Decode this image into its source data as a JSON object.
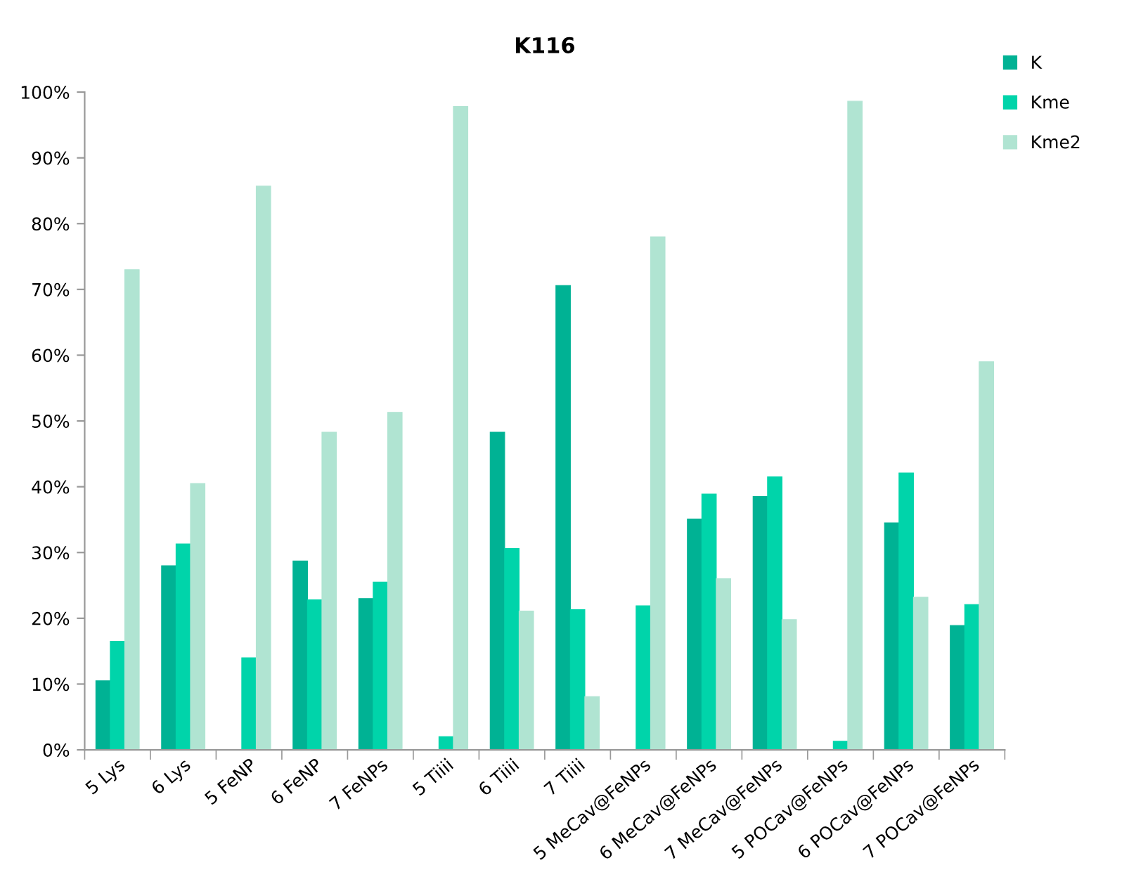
{
  "chart_data": {
    "type": "bar",
    "title": "K116",
    "categories": [
      "5 Lys",
      "6 Lys",
      "5 FeNP",
      "6 FeNP",
      "7 FeNPs",
      "5 Tiiii",
      "6 Tiiii",
      "7 Tiiii",
      "5 MeCav@FeNPs",
      "6 MeCav@FeNPs",
      "7 MeCav@FeNPs",
      "5 POCav@FeNPs",
      "6 POCav@FeNPs",
      "7 POCav@FeNPs"
    ],
    "series": [
      {
        "name": "K",
        "color": "#00b294",
        "values": [
          10.5,
          28,
          null,
          28.7,
          23,
          0,
          48.3,
          70.6,
          0,
          35.1,
          38.5,
          null,
          34.5,
          18.9
        ]
      },
      {
        "name": "Kme",
        "color": "#00d4aa",
        "values": [
          16.5,
          31.3,
          14,
          22.8,
          25.5,
          2,
          30.6,
          21.3,
          21.9,
          38.9,
          41.5,
          1.3,
          42.1,
          22.1
        ]
      },
      {
        "name": "Kme2",
        "color": "#b0e4d2",
        "values": [
          73,
          40.5,
          85.7,
          48.3,
          51.3,
          97.8,
          21.1,
          8.1,
          78,
          26,
          19.8,
          98.6,
          23.2,
          59
        ]
      }
    ],
    "ylim": [
      0,
      100
    ],
    "yticks": [
      {
        "value": 0,
        "label": "0%"
      },
      {
        "value": 10,
        "label": "10%"
      },
      {
        "value": 20,
        "label": "20%"
      },
      {
        "value": 30,
        "label": "30%"
      },
      {
        "value": 40,
        "label": "40%"
      },
      {
        "value": 50,
        "label": "50%"
      },
      {
        "value": 60,
        "label": "60%"
      },
      {
        "value": 70,
        "label": "70%"
      },
      {
        "value": 80,
        "label": "80%"
      },
      {
        "value": 90,
        "label": "90%"
      },
      {
        "value": 100,
        "label": "100%"
      }
    ],
    "legend": "top right",
    "grid": false
  }
}
